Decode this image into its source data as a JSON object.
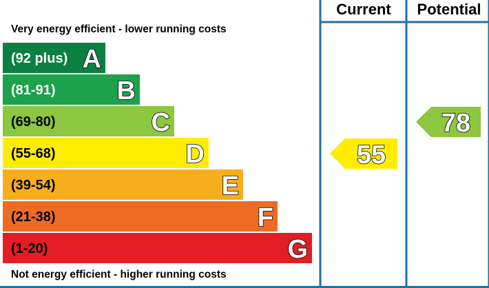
{
  "chart_data": {
    "type": "bar",
    "top_note": "Very energy efficient - lower running costs",
    "bottom_note": "Not energy efficient - higher running costs",
    "columns": {
      "current_label": "Current",
      "potential_label": "Potential"
    },
    "bands": [
      {
        "letter": "A",
        "range": "(92 plus)",
        "min": 92,
        "max": 100,
        "color": "#0c8040",
        "range_color": "#ffffff"
      },
      {
        "letter": "B",
        "range": "(81-91)",
        "min": 81,
        "max": 91,
        "color": "#1ba24a",
        "range_color": "#ffffff"
      },
      {
        "letter": "C",
        "range": "(69-80)",
        "min": 69,
        "max": 80,
        "color": "#8dc63f",
        "range_color": "#000000"
      },
      {
        "letter": "D",
        "range": "(55-68)",
        "min": 55,
        "max": 68,
        "color": "#ffed00",
        "range_color": "#000000"
      },
      {
        "letter": "E",
        "range": "(39-54)",
        "min": 39,
        "max": 54,
        "color": "#f6ae1e",
        "range_color": "#000000"
      },
      {
        "letter": "F",
        "range": "(21-38)",
        "min": 21,
        "max": 38,
        "color": "#ee6b24",
        "range_color": "#000000"
      },
      {
        "letter": "G",
        "range": "(1-20)",
        "min": 1,
        "max": 20,
        "color": "#e31d23",
        "range_color": "#000000"
      }
    ],
    "current": {
      "value": 55,
      "label": "55",
      "band": "D",
      "color": "#ffed00"
    },
    "potential": {
      "value": 78,
      "label": "78",
      "band": "C",
      "color": "#8dc63f"
    },
    "frame_color": "#1c71a4"
  }
}
